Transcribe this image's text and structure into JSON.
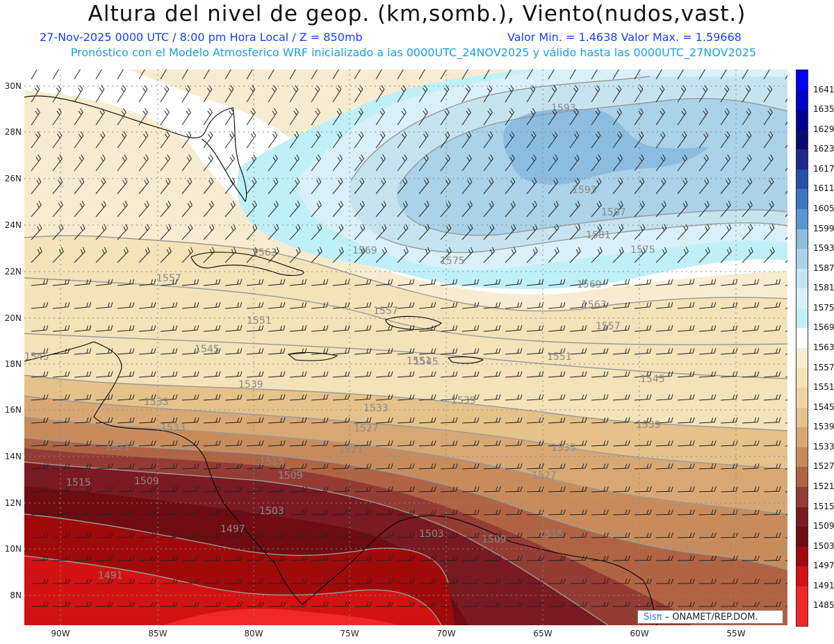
{
  "header": {
    "title": "Altura del nivel de geop. (km,somb.), Viento(nudos,vast.)",
    "line1_left": "27-Nov-2025  0000 UTC / 8:00 pm Hora Local / Z = 850mb",
    "line1_right": "Valor Min. = 1.4638  Valor Max. = 1.59668",
    "line2": "Pronóstico con el Modelo Atmosferico WRF inicializado a las 0000UTC_24NOV2025 y válido hasta las  0000UTC_27NOV2025"
  },
  "map": {
    "lat_labels": [
      "30N",
      "28N",
      "26N",
      "24N",
      "22N",
      "20N",
      "18N",
      "16N",
      "14N",
      "12N",
      "10N",
      "8N"
    ],
    "lon_labels": [
      "90W",
      "85W",
      "80W",
      "75W",
      "70W",
      "65W",
      "60W",
      "55W"
    ],
    "contour_labels": [
      "1593",
      "1593",
      "1587",
      "1581",
      "1575",
      "1575",
      "1569",
      "1569",
      "1563",
      "1563",
      "1557",
      "1557",
      "1557",
      "1551",
      "1551",
      "1551",
      "1545",
      "1545",
      "1545",
      "1545",
      "1539",
      "1539",
      "1539",
      "1533",
      "1533",
      "1533",
      "1533",
      "1527",
      "1527",
      "1521",
      "1521",
      "1515",
      "1515",
      "1515",
      "1509",
      "1509",
      "1509",
      "1503",
      "1503",
      "1497",
      "1491"
    ]
  },
  "colorbar": {
    "levels": [
      "1641",
      "1635",
      "1629",
      "1623",
      "1617",
      "1611",
      "1605",
      "1599",
      "1593",
      "1587",
      "1581",
      "1575",
      "1569",
      "1563",
      "1557",
      "1551",
      "1545",
      "1539",
      "1533",
      "1527",
      "1521",
      "1515",
      "1509",
      "1503",
      "1497",
      "1491",
      "1485"
    ],
    "colors": [
      "#0000ff",
      "#0000c8",
      "#000090",
      "#0a0a70",
      "#1e2890",
      "#2850a8",
      "#3c78c0",
      "#5a96d2",
      "#8cbce0",
      "#aad2e8",
      "#c6e4f0",
      "#daf0f8",
      "#bff0f8",
      "#ffffff",
      "#f8ecd0",
      "#f4e2b8",
      "#eed4a0",
      "#e4c28a",
      "#d8a874",
      "#c88c5c",
      "#b06444",
      "#943c34",
      "#7a1a22",
      "#6e0c12",
      "#a00a0a",
      "#d21212",
      "#f02828"
    ]
  },
  "credit": {
    "brand": "Sisπ",
    "text": " – ONAMET/REP.DOM."
  }
}
